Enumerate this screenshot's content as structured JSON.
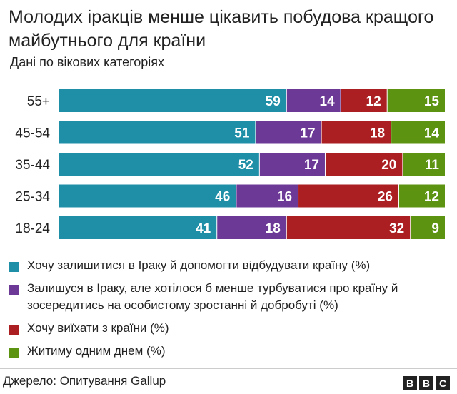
{
  "title": "Молодих іракців менше цікавить побудова кращого майбутнього для країни",
  "subtitle": "Дані по вікових категоріях",
  "source": "Джерело: Опитування Gallup",
  "logo": [
    "B",
    "B",
    "C"
  ],
  "colors": {
    "stay_rebuild": "#1f8fa8",
    "stay_personal": "#6c3a96",
    "leave": "#ab1e22",
    "day_by_day": "#5c9311"
  },
  "legend": [
    {
      "label": "Хочу залишитися в Іраку й допомогти відбудувати країну (%)",
      "color": "#1f8fa8"
    },
    {
      "label": "Залишуся в Іраку, але хотілося б менше турбуватися про країну й зосередитись на особистому зростанні й добробуті (%)",
      "color": "#6c3a96"
    },
    {
      "label": "Хочу виїхати з країни (%)",
      "color": "#ab1e22"
    },
    {
      "label": "Житиму одним днем (%)",
      "color": "#5c9311"
    }
  ],
  "chart_data": {
    "type": "bar",
    "orientation": "horizontal",
    "stacked": true,
    "categories": [
      "55+",
      "45-54",
      "35-44",
      "25-34",
      "18-24"
    ],
    "series": [
      {
        "name": "Хочу залишитися в Іраку й допомогти відбудувати країну (%)",
        "color": "#1f8fa8",
        "values": [
          59,
          51,
          52,
          46,
          41
        ]
      },
      {
        "name": "Залишуся в Іраку, але хотілося б менше турбуватися про країну й зосередитись на особистому зростанні й добробуті (%)",
        "color": "#6c3a96",
        "values": [
          14,
          17,
          17,
          16,
          18
        ]
      },
      {
        "name": "Хочу виїхати з країни (%)",
        "color": "#ab1e22",
        "values": [
          12,
          18,
          20,
          26,
          32
        ]
      },
      {
        "name": "Житиму одним днем (%)",
        "color": "#5c9311",
        "values": [
          15,
          14,
          11,
          12,
          9
        ]
      }
    ],
    "xlim": [
      0,
      100
    ],
    "grid": false,
    "legend_position": "bottom"
  }
}
